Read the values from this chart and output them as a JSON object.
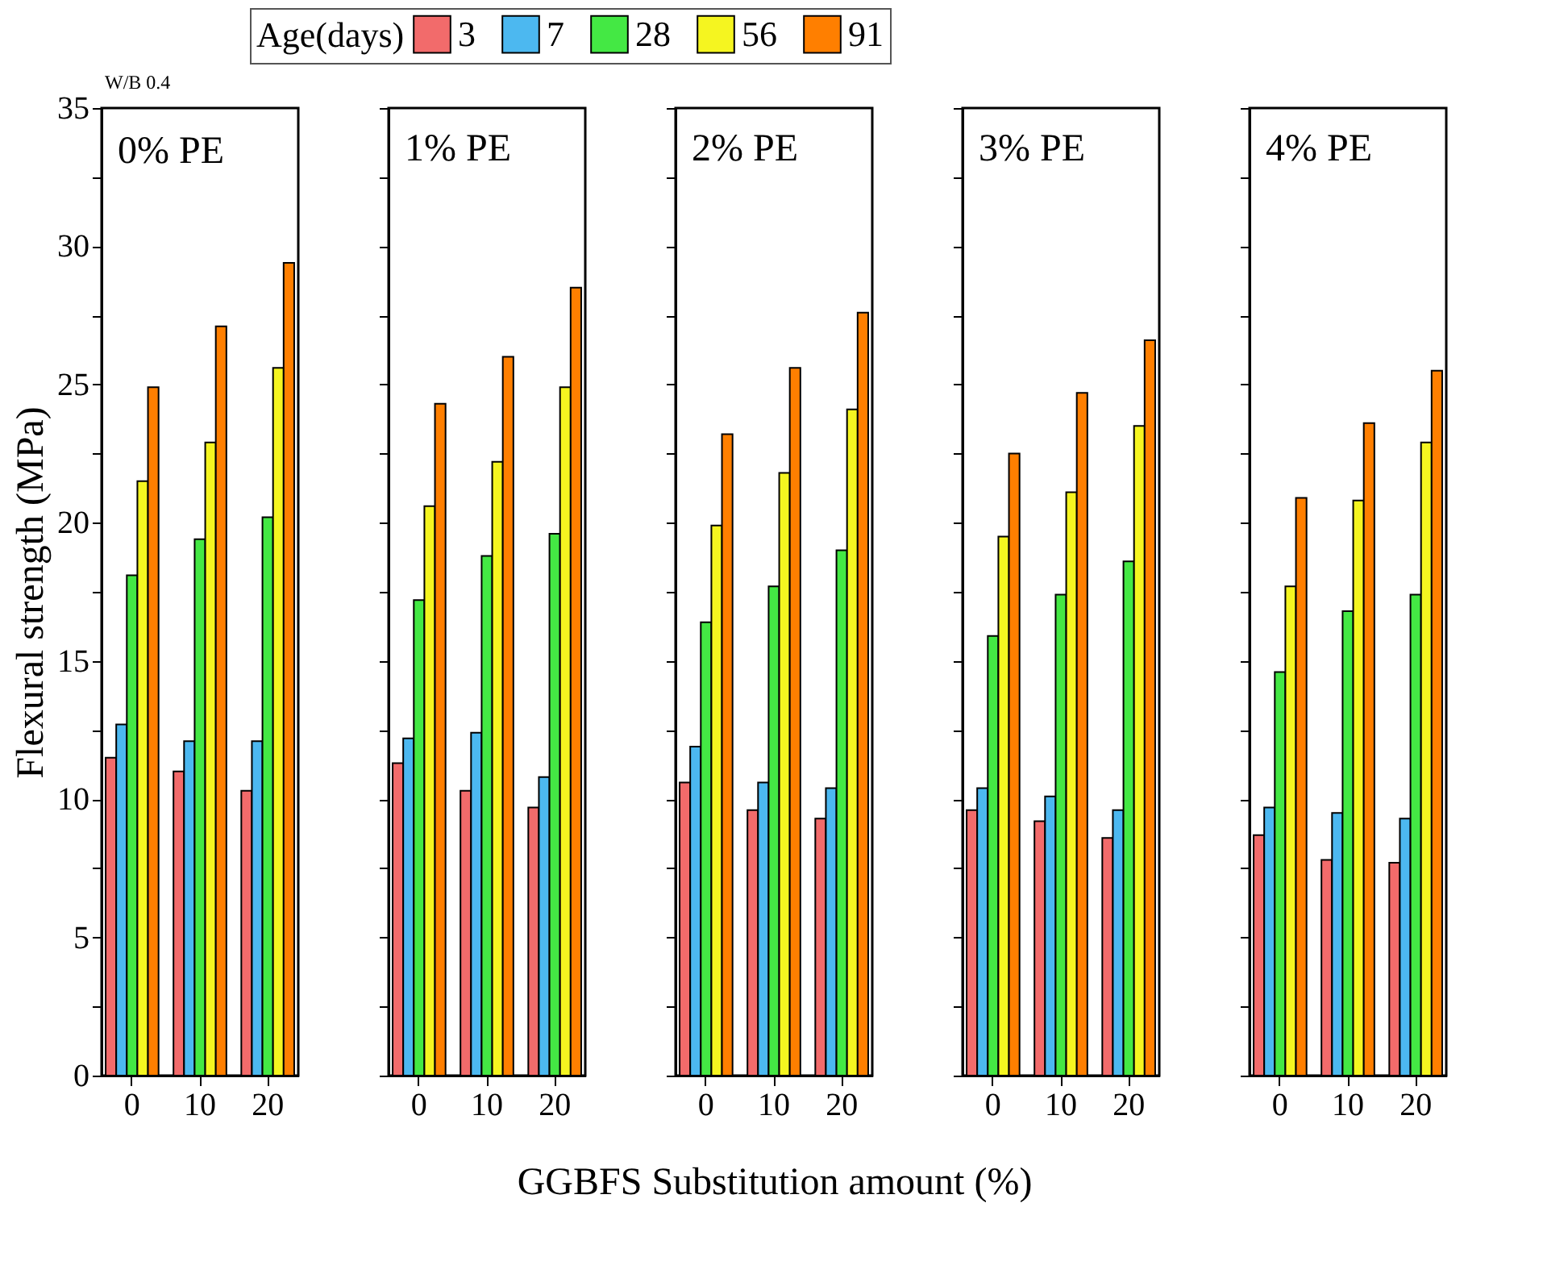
{
  "chart_data": [
    {
      "type": "bar",
      "title": "0% PE",
      "ylabel": "Flexural strength (MPa)",
      "legend_title": "Age(days)",
      "legend": "top",
      "annotations": [
        "W/B 0.4"
      ],
      "categories": [
        "0",
        "10",
        "20"
      ],
      "ylim": [
        0,
        35
      ],
      "yticks": [
        0,
        {
          "value": 2.5,
          "label": null
        },
        5,
        {
          "value": 7.5,
          "label": null
        },
        10,
        {
          "value": 12.5,
          "label": null
        },
        15,
        {
          "value": 17.5,
          "label": null
        },
        20,
        {
          "value": 22.5,
          "label": null
        },
        25,
        {
          "value": 27.5,
          "label": null
        },
        30,
        {
          "value": 32.5,
          "label": null
        },
        35
      ],
      "series": [
        {
          "name": "3",
          "color": "#f26b6b",
          "values": [
            11.5,
            11.0,
            10.3
          ]
        },
        {
          "name": "7",
          "color": "#4cb8f0",
          "values": [
            12.7,
            12.1,
            12.1
          ]
        },
        {
          "name": "28",
          "color": "#44e844",
          "values": [
            18.1,
            19.4,
            20.2
          ]
        },
        {
          "name": "56",
          "color": "#f5f520",
          "values": [
            21.5,
            22.9,
            25.6
          ]
        },
        {
          "name": "91",
          "color": "#ff7f00",
          "values": [
            24.9,
            27.1,
            29.4
          ]
        }
      ]
    },
    {
      "type": "bar",
      "title": "1% PE",
      "tick_labels": "x",
      "categories": [
        "0",
        "10",
        "20"
      ],
      "ylim": [
        0,
        35
      ],
      "yticks": [
        0,
        {
          "value": 2.5,
          "label": null
        },
        5,
        {
          "value": 7.5,
          "label": null
        },
        10,
        {
          "value": 12.5,
          "label": null
        },
        15,
        {
          "value": 17.5,
          "label": null
        },
        20,
        {
          "value": 22.5,
          "label": null
        },
        25,
        {
          "value": 27.5,
          "label": null
        },
        30,
        {
          "value": 32.5,
          "label": null
        },
        35
      ],
      "series": [
        {
          "name": "3",
          "color": "#f26b6b",
          "values": [
            11.3,
            10.3,
            9.7
          ]
        },
        {
          "name": "7",
          "color": "#4cb8f0",
          "values": [
            12.2,
            12.4,
            10.8
          ]
        },
        {
          "name": "28",
          "color": "#44e844",
          "values": [
            17.2,
            18.8,
            19.6
          ]
        },
        {
          "name": "56",
          "color": "#f5f520",
          "values": [
            20.6,
            22.2,
            24.9
          ]
        },
        {
          "name": "91",
          "color": "#ff7f00",
          "values": [
            24.3,
            26.0,
            28.5
          ]
        }
      ]
    },
    {
      "type": "bar",
      "title": "2% PE",
      "xlabel": "GGBFS Substitution amount (%)",
      "tick_labels": "x",
      "categories": [
        "0",
        "10",
        "20"
      ],
      "ylim": [
        0,
        35
      ],
      "yticks": [
        0,
        {
          "value": 2.5,
          "label": null
        },
        5,
        {
          "value": 7.5,
          "label": null
        },
        10,
        {
          "value": 12.5,
          "label": null
        },
        15,
        {
          "value": 17.5,
          "label": null
        },
        20,
        {
          "value": 22.5,
          "label": null
        },
        25,
        {
          "value": 27.5,
          "label": null
        },
        30,
        {
          "value": 32.5,
          "label": null
        },
        35
      ],
      "series": [
        {
          "name": "3",
          "color": "#f26b6b",
          "values": [
            10.6,
            9.6,
            9.3
          ]
        },
        {
          "name": "7",
          "color": "#4cb8f0",
          "values": [
            11.9,
            10.6,
            10.4
          ]
        },
        {
          "name": "28",
          "color": "#44e844",
          "values": [
            16.4,
            17.7,
            19.0
          ]
        },
        {
          "name": "56",
          "color": "#f5f520",
          "values": [
            19.9,
            21.8,
            24.1
          ]
        },
        {
          "name": "91",
          "color": "#ff7f00",
          "values": [
            23.2,
            25.6,
            27.6
          ]
        }
      ]
    },
    {
      "type": "bar",
      "title": "3% PE",
      "tick_labels": "x",
      "categories": [
        "0",
        "10",
        "20"
      ],
      "ylim": [
        0,
        35
      ],
      "yticks": [
        0,
        {
          "value": 2.5,
          "label": null
        },
        5,
        {
          "value": 7.5,
          "label": null
        },
        10,
        {
          "value": 12.5,
          "label": null
        },
        15,
        {
          "value": 17.5,
          "label": null
        },
        20,
        {
          "value": 22.5,
          "label": null
        },
        25,
        {
          "value": 27.5,
          "label": null
        },
        30,
        {
          "value": 32.5,
          "label": null
        },
        35
      ],
      "series": [
        {
          "name": "3",
          "color": "#f26b6b",
          "values": [
            9.6,
            9.2,
            8.6
          ]
        },
        {
          "name": "7",
          "color": "#4cb8f0",
          "values": [
            10.4,
            10.1,
            9.6
          ]
        },
        {
          "name": "28",
          "color": "#44e844",
          "values": [
            15.9,
            17.4,
            18.6
          ]
        },
        {
          "name": "56",
          "color": "#f5f520",
          "values": [
            19.5,
            21.1,
            23.5
          ]
        },
        {
          "name": "91",
          "color": "#ff7f00",
          "values": [
            22.5,
            24.7,
            26.6
          ]
        }
      ]
    },
    {
      "type": "bar",
      "title": "4% PE",
      "tick_labels": "x",
      "categories": [
        "0",
        "10",
        "20"
      ],
      "ylim": [
        0,
        35
      ],
      "yticks": [
        0,
        {
          "value": 2.5,
          "label": null
        },
        5,
        {
          "value": 7.5,
          "label": null
        },
        10,
        {
          "value": 12.5,
          "label": null
        },
        15,
        {
          "value": 17.5,
          "label": null
        },
        20,
        {
          "value": 22.5,
          "label": null
        },
        25,
        {
          "value": 27.5,
          "label": null
        },
        30,
        {
          "value": 32.5,
          "label": null
        },
        35
      ],
      "series": [
        {
          "name": "3",
          "color": "#f26b6b",
          "values": [
            8.7,
            7.8,
            7.7
          ]
        },
        {
          "name": "7",
          "color": "#4cb8f0",
          "values": [
            9.7,
            9.5,
            9.3
          ]
        },
        {
          "name": "28",
          "color": "#44e844",
          "values": [
            14.6,
            16.8,
            17.4
          ]
        },
        {
          "name": "56",
          "color": "#f5f520",
          "values": [
            17.7,
            20.8,
            22.9
          ]
        },
        {
          "name": "91",
          "color": "#ff7f00",
          "values": [
            20.9,
            23.6,
            25.5
          ]
        }
      ]
    }
  ]
}
